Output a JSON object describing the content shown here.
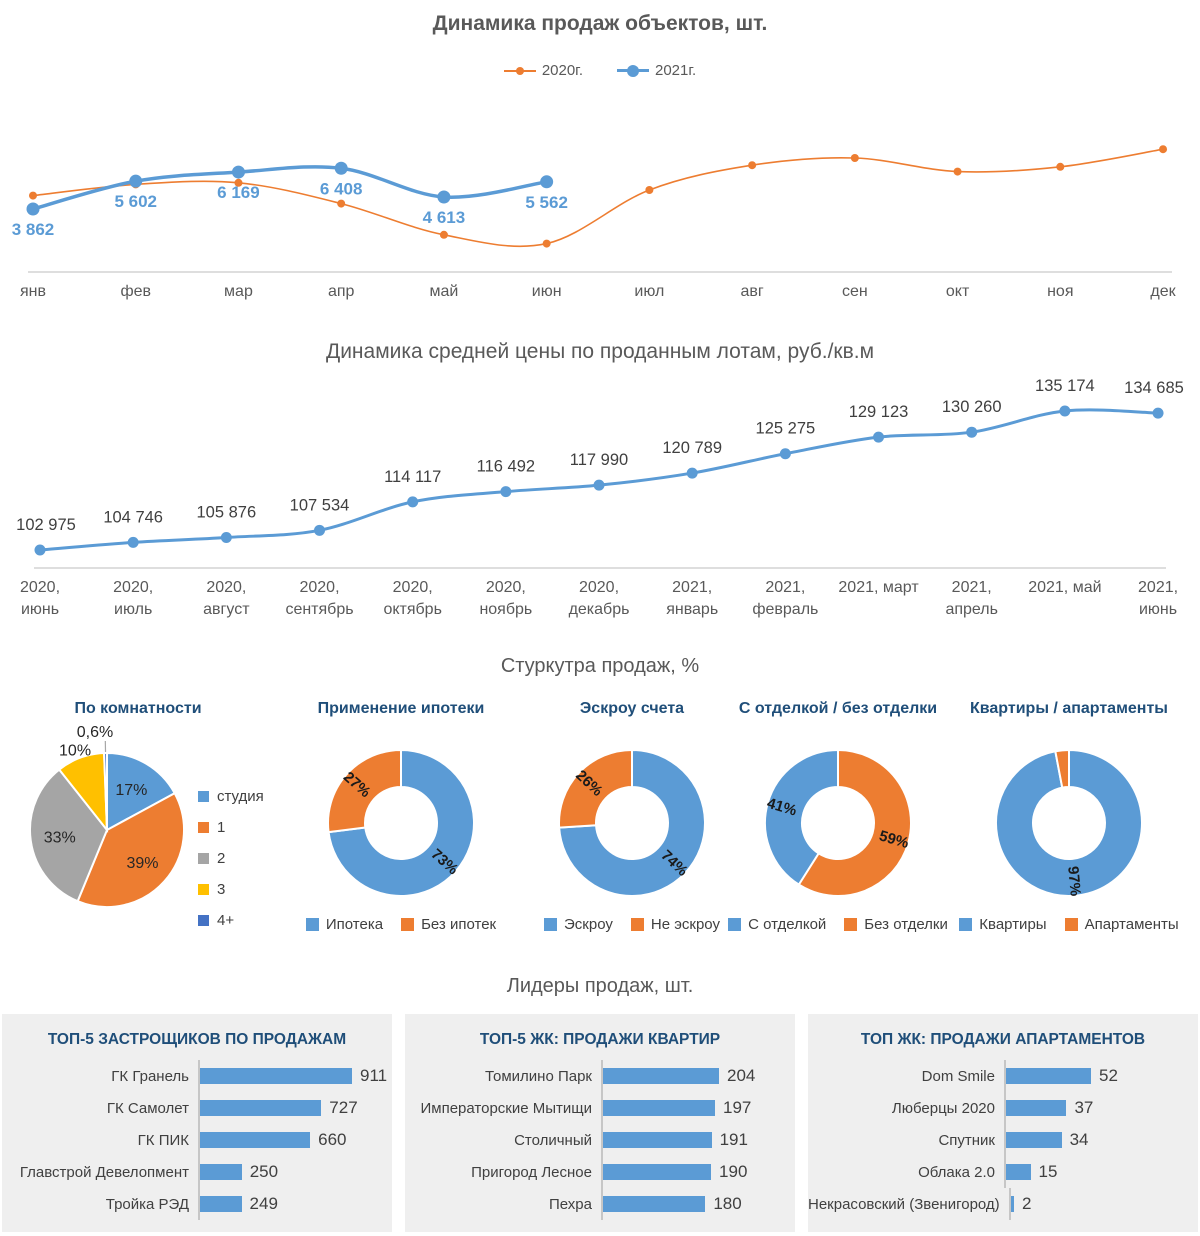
{
  "page": {
    "background": "#FFFFFF"
  },
  "sections": {
    "structure_title": "Стуркутра продаж, %",
    "leaders_title": "Лидеры продаж, шт."
  },
  "colors": {
    "accent_blue": "#5B9BD5",
    "accent_orange": "#ED7D31",
    "series_gray": "#A5A5A5",
    "series_yellow": "#FFC000",
    "series_navy": "#4472C4",
    "heading_gray": "#595959",
    "heading_navy": "#1F4E79",
    "label_dark": "#404040"
  },
  "chart_data": [
    {
      "id": "sales-dynamics",
      "type": "line",
      "title": "Динамика продаж объектов, шт.",
      "legend_position": "top",
      "categories": [
        "янв",
        "фев",
        "мар",
        "апр",
        "май",
        "июн",
        "июл",
        "авг",
        "сен",
        "окт",
        "ноя",
        "дек"
      ],
      "series": [
        {
          "name": "2020г.",
          "color": "#ED7D31",
          "values": [
            4700,
            5400,
            5500,
            4200,
            2250,
            1700,
            5050,
            6600,
            7050,
            6200,
            6500,
            7600
          ]
        },
        {
          "name": "2021г.",
          "color": "#5B9BD5",
          "values": [
            3862,
            5602,
            6169,
            6408,
            4613,
            5562
          ],
          "data_labels": [
            "3 862",
            "5 602",
            "6 169",
            "6 408",
            "4 613",
            "5 562"
          ]
        }
      ]
    },
    {
      "id": "price-dynamics",
      "type": "line",
      "title": "Динамика средней цены по проданным лотам, руб./кв.м",
      "categories": [
        "2020,\nиюнь",
        "2020,\nиюль",
        "2020,\nавгуст",
        "2020,\nсентябрь",
        "2020,\nоктябрь",
        "2020,\nноябрь",
        "2020,\nдекабрь",
        "2021,\nянварь",
        "2021,\nфевраль",
        "2021, март",
        "2021,\nапрель",
        "2021, май",
        "2021,\nиюнь"
      ],
      "series": [
        {
          "name": "Средняя цена",
          "color": "#5B9BD5",
          "values": [
            102975,
            104746,
            105876,
            107534,
            114117,
            116492,
            117990,
            120789,
            125275,
            129123,
            130260,
            135174,
            134685
          ],
          "data_labels": [
            "102 975",
            "104 746",
            "105 876",
            "107 534",
            "114 117",
            "116 492",
            "117 990",
            "120 789",
            "125 275",
            "129 123",
            "130 260",
            "135 174",
            "134 685"
          ]
        }
      ]
    },
    {
      "id": "rooms",
      "type": "pie",
      "title": "По комнатности",
      "start_angle": 0,
      "slices": [
        {
          "label": "студия",
          "value": 17,
          "display": "17%",
          "color": "#5B9BD5"
        },
        {
          "label": "1",
          "value": 39,
          "display": "39%",
          "color": "#ED7D31"
        },
        {
          "label": "2",
          "value": 33,
          "display": "33%",
          "color": "#A5A5A5"
        },
        {
          "label": "3",
          "value": 10,
          "display": "10%",
          "color": "#FFC000"
        },
        {
          "label": "4+",
          "value": 0.6,
          "display": "0,6%",
          "color": "#4472C4"
        }
      ]
    },
    {
      "id": "mortgage",
      "type": "donut",
      "title": "Применение ипотеки",
      "start_angle": 0,
      "slices": [
        {
          "label": "Ипотека",
          "value": 73,
          "display": "73%",
          "color": "#5B9BD5"
        },
        {
          "label": "Без ипотек",
          "value": 27,
          "display": "27%",
          "color": "#ED7D31"
        }
      ]
    },
    {
      "id": "escrow",
      "type": "donut",
      "title": "Эскроу счета",
      "start_angle": 0,
      "slices": [
        {
          "label": "Эскроу",
          "value": 74,
          "display": "74%",
          "color": "#5B9BD5"
        },
        {
          "label": "Не эскроу",
          "value": 26,
          "display": "26%",
          "color": "#ED7D31"
        }
      ]
    },
    {
      "id": "finishing",
      "type": "donut",
      "title": "С отделкой / без отделки",
      "start_angle": 212.4,
      "slices": [
        {
          "label": "С отделкой",
          "value": 41,
          "display": "41%",
          "color": "#5B9BD5"
        },
        {
          "label": "Без отделки",
          "value": 59,
          "display": "59%",
          "color": "#ED7D31"
        }
      ]
    },
    {
      "id": "flats-vs-apartments",
      "type": "donut",
      "title": "Квартиры / апартаменты",
      "start_angle": 0,
      "slices": [
        {
          "label": "Квартиры",
          "value": 97,
          "display": "97%",
          "color": "#5B9BD5"
        },
        {
          "label": "Апартаменты",
          "value": 3,
          "color": "#ED7D31"
        }
      ]
    },
    {
      "id": "top-developers",
      "type": "bar",
      "title": "ТОП-5 ЗАСТРОЩИКОВ ПО ПРОДАЖАМ",
      "color": "#5B9BD5",
      "categories": [
        "ГК Гранель",
        "ГК Самолет",
        "ГК ПИК",
        "Главстрой Девелопмент",
        "Тройка РЭД"
      ],
      "values": [
        911,
        727,
        660,
        250,
        249
      ]
    },
    {
      "id": "top-flats",
      "type": "bar",
      "title": "ТОП-5 ЖК: ПРОДАЖИ КВАРТИР",
      "color": "#5B9BD5",
      "categories": [
        "Томилино Парк",
        "Императорские Мытищи",
        "Столичный",
        "Пригород Лесное",
        "Пехра"
      ],
      "values": [
        204,
        197,
        191,
        190,
        180
      ]
    },
    {
      "id": "top-apartments",
      "type": "bar",
      "title": "ТОП ЖК: ПРОДАЖИ АПАРТАМЕНТОВ",
      "color": "#5B9BD5",
      "categories": [
        "Dom Smile",
        "Люберцы 2020",
        "Спутник",
        "Облака 2.0",
        "Некрасовский (Звенигород)"
      ],
      "values": [
        52,
        37,
        34,
        15,
        2
      ]
    }
  ]
}
